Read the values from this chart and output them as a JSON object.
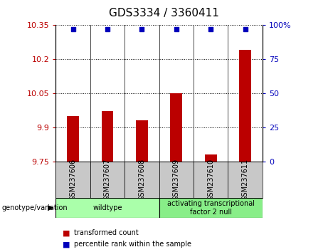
{
  "title": "GDS3334 / 3360411",
  "samples": [
    "GSM237606",
    "GSM237607",
    "GSM237608",
    "GSM237609",
    "GSM237610",
    "GSM237611"
  ],
  "transformed_counts": [
    9.95,
    9.97,
    9.93,
    10.05,
    9.78,
    10.24
  ],
  "percentile_ranks": [
    97,
    97,
    97,
    97,
    97,
    97
  ],
  "bar_color": "#bb0000",
  "dot_color": "#0000bb",
  "left_yticks": [
    9.75,
    9.9,
    10.05,
    10.2,
    10.35
  ],
  "right_yticks": [
    0,
    25,
    50,
    75,
    100
  ],
  "ylim_left": [
    9.75,
    10.35
  ],
  "ylim_right": [
    0,
    100
  ],
  "groups": [
    {
      "label": "wildtype",
      "indices": [
        0,
        1,
        2
      ],
      "color": "#aaffaa"
    },
    {
      "label": "activating transcriptional\nfactor 2 null",
      "indices": [
        3,
        4,
        5
      ],
      "color": "#88ee88"
    }
  ],
  "group_label_prefix": "genotype/variation",
  "legend_items": [
    {
      "color": "#bb0000",
      "label": "transformed count"
    },
    {
      "color": "#0000bb",
      "label": "percentile rank within the sample"
    }
  ],
  "background_color": "#c8c8c8",
  "plot_bg_color": "#ffffff",
  "title_fontsize": 11,
  "tick_fontsize": 8,
  "sample_fontsize": 7
}
